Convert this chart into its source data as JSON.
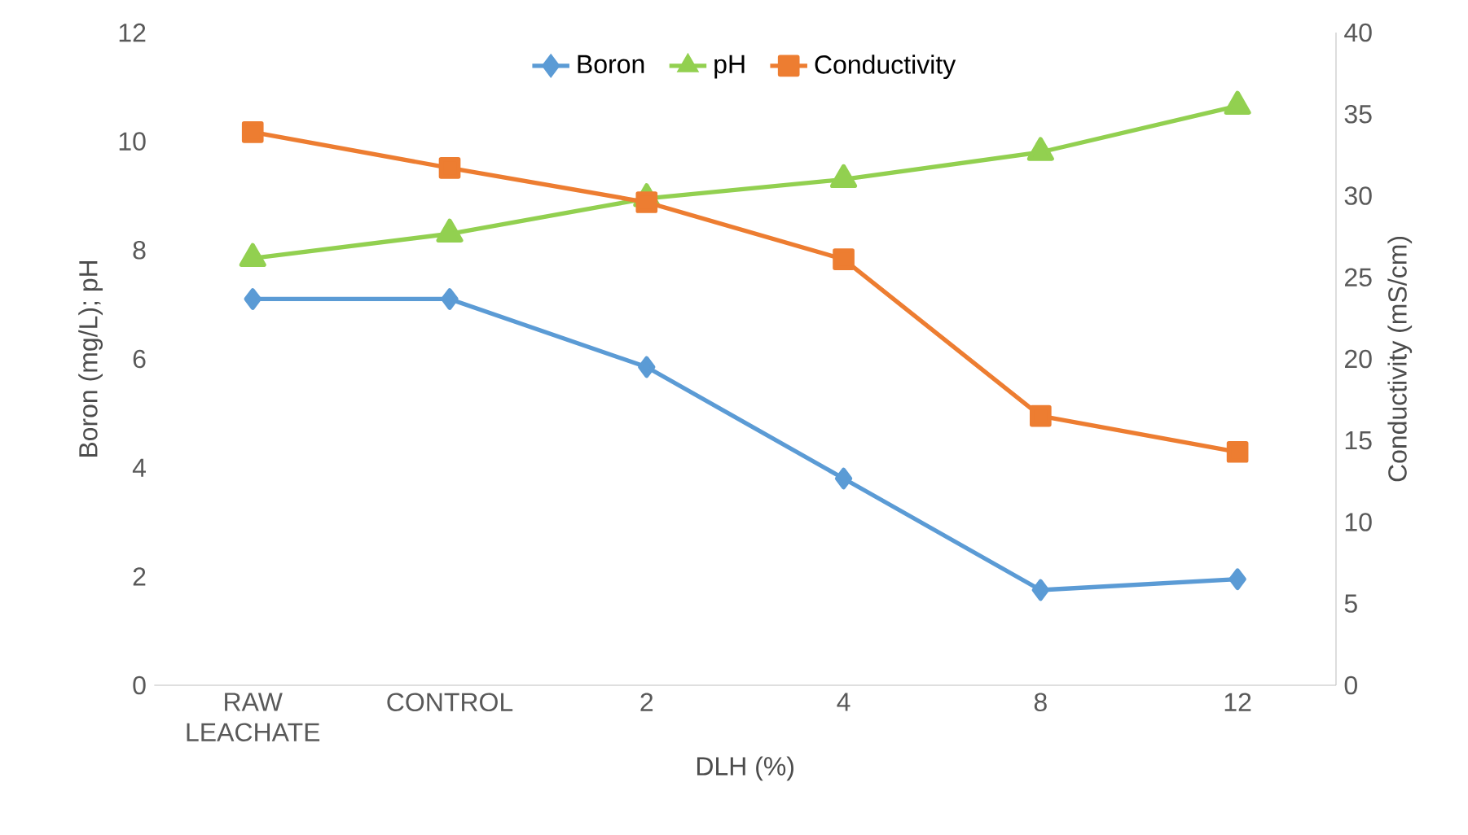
{
  "chart_data": {
    "type": "line",
    "xlabel": "DLH (%)",
    "ylabel": "Boron (mg/L);  pH",
    "y2label": "Conductivity (mS/cm)",
    "categories": [
      "RAW LEACHATE",
      "CONTROL",
      "2",
      "4",
      "8",
      "12"
    ],
    "series": [
      {
        "name": "Boron",
        "color": "#5b9bd5",
        "marker": "diamond",
        "values": [
          7.1,
          7.1,
          5.85,
          3.8,
          1.75,
          1.95
        ]
      },
      {
        "name": "pH",
        "color": "#92d050",
        "marker": "triangle",
        "values": [
          7.85,
          8.3,
          8.95,
          9.3,
          9.8,
          10.65
        ]
      },
      {
        "name": "Conductivity",
        "color": "#ed7d31",
        "marker": "square",
        "axis": "y2",
        "values": [
          33.9,
          31.7,
          29.6,
          26.1,
          16.5,
          14.3
        ]
      }
    ],
    "ylim": [
      0,
      12
    ],
    "yticks": [
      0,
      2,
      4,
      6,
      8,
      10,
      12
    ],
    "y2lim": [
      0,
      40
    ],
    "y2ticks": [
      0,
      5,
      10,
      15,
      20,
      25,
      30,
      35,
      40
    ],
    "legend": "top",
    "grid": false,
    "line_style": "solid"
  }
}
